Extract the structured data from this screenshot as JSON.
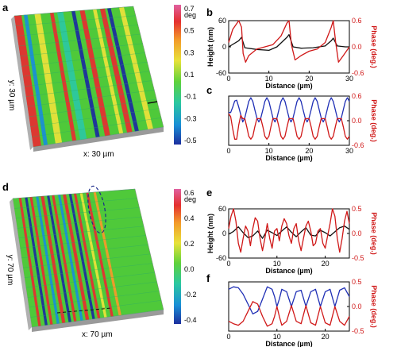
{
  "colors": {
    "height_line": "#111111",
    "phase_line": "#d01818",
    "blue_line": "#1f2fb5",
    "cmap": [
      "#1c2f9e",
      "#1a8fd6",
      "#2cc8a0",
      "#5fd23c",
      "#e8e23a",
      "#f39a2a",
      "#e43030",
      "#e060a0"
    ]
  },
  "panels": {
    "a": {
      "letter": "a",
      "x_label": "x: 30 µm",
      "y_label": "y: 30 µm"
    },
    "d": {
      "letter": "d",
      "x_label": "x: 70 µm",
      "y_label": "y: 70 µm"
    }
  },
  "colorbars": [
    {
      "id": "cb_a",
      "unit": "deg",
      "ticks": [
        "0.7",
        "0.5",
        "0.3",
        "0.1",
        "-0.1",
        "-0.3",
        "-0.5"
      ],
      "range": [
        -0.5,
        0.7
      ]
    },
    {
      "id": "cb_d",
      "unit": "deg",
      "ticks": [
        "0.6",
        "0.4",
        "0.2",
        "0.0",
        "-0.2",
        "-0.4"
      ],
      "range": [
        -0.4,
        0.6
      ]
    }
  ],
  "chart_data": [
    {
      "panel": "b",
      "type": "line",
      "xlabel": "Distance (µm)",
      "ylabel": "Height (nm)",
      "y2label": "Phase (deg.)",
      "xlim": [
        0,
        30
      ],
      "ylim": [
        -60,
        60
      ],
      "y2lim": [
        -0.6,
        0.6
      ],
      "xticks": [
        "0",
        "10",
        "20",
        "30"
      ],
      "yticks": [
        "60",
        "0",
        "-60"
      ],
      "y2ticks": [
        "0.6",
        "0.0",
        "-0.6"
      ],
      "series": [
        {
          "axis": "left",
          "color": "#111111",
          "x": [
            0,
            2.5,
            3.2,
            4,
            7,
            10,
            12,
            14.5,
            15,
            16,
            18,
            21,
            24,
            25.5,
            26,
            27,
            29,
            30
          ],
          "y": [
            0,
            14,
            22,
            -2,
            -6,
            -8,
            0,
            22,
            28,
            0,
            -3,
            -2,
            2,
            14,
            20,
            2,
            0,
            0
          ]
        },
        {
          "axis": "right",
          "color": "#d01818",
          "x": [
            0,
            1,
            2.5,
            3.2,
            3.6,
            4.2,
            5,
            7,
            9,
            11,
            13,
            14.5,
            15,
            15.6,
            16.5,
            18,
            20,
            22,
            24,
            25.5,
            26,
            26.6,
            27.3,
            28.5,
            30
          ],
          "y": [
            0.1,
            0.4,
            0.6,
            0.45,
            -0.15,
            -0.35,
            -0.2,
            -0.05,
            0.0,
            0.05,
            0.25,
            0.55,
            0.6,
            0.05,
            -0.3,
            -0.2,
            -0.1,
            -0.05,
            0.1,
            0.45,
            0.6,
            0.1,
            -0.35,
            -0.2,
            0.0
          ]
        }
      ]
    },
    {
      "panel": "c",
      "type": "line",
      "xlabel": "Distance (µm)",
      "ylabel": "",
      "y2label": "Phase (deg.)",
      "xlim": [
        0,
        30
      ],
      "ylim": [
        -0.6,
        0.6
      ],
      "y2lim": [
        -0.6,
        0.6
      ],
      "xticks": [
        "0",
        "10",
        "20",
        "30"
      ],
      "yticks": [],
      "y2ticks": [
        "0.6",
        "0.0",
        "-0.6"
      ],
      "series": [
        {
          "axis": "right",
          "color": "#1f2fb5",
          "x": [
            0,
            0.5,
            1,
            1.5,
            2,
            2.5,
            3,
            3.5,
            4,
            4.5,
            5,
            5.5,
            6,
            6.5,
            7,
            7.5,
            8,
            8.5,
            9,
            9.5,
            10,
            10.5,
            11,
            11.5,
            12,
            12.5,
            13,
            13.5,
            14,
            14.5,
            15,
            15.5,
            16,
            16.5,
            17,
            17.5,
            18,
            18.5,
            19,
            19.5,
            20,
            20.5,
            21,
            21.5,
            22,
            22.5,
            23,
            23.5,
            24,
            24.5,
            25,
            25.5,
            26,
            26.5,
            27,
            27.5,
            28,
            28.5,
            29,
            29.5,
            30
          ],
          "y": [
            0.2,
            0.2,
            0.33,
            0.48,
            0.5,
            0.33,
            0.15,
            -0.03,
            0.07,
            0.27,
            0.47,
            0.56,
            0.47,
            0.27,
            0.07,
            -0.03,
            0.07,
            0.27,
            0.47,
            0.56,
            0.47,
            0.27,
            0.07,
            -0.03,
            0.07,
            0.27,
            0.47,
            0.56,
            0.47,
            0.27,
            0.07,
            -0.03,
            0.07,
            0.27,
            0.47,
            0.56,
            0.47,
            0.27,
            0.07,
            -0.03,
            0.07,
            0.27,
            0.47,
            0.56,
            0.47,
            0.27,
            0.07,
            -0.03,
            0.07,
            0.27,
            0.47,
            0.56,
            0.47,
            0.27,
            0.07,
            -0.03,
            0.07,
            0.27,
            0.47,
            0.56,
            0.47
          ]
        },
        {
          "axis": "right",
          "color": "#d01818",
          "x": [
            0,
            0.5,
            1,
            1.5,
            2,
            2.5,
            3,
            3.5,
            4,
            4.5,
            5,
            5.5,
            6,
            6.5,
            7,
            7.5,
            8,
            8.5,
            9,
            9.5,
            10,
            10.5,
            11,
            11.5,
            12,
            12.5,
            13,
            13.5,
            14,
            14.5,
            15,
            15.5,
            16,
            16.5,
            17,
            17.5,
            18,
            18.5,
            19,
            19.5,
            20,
            20.5,
            21,
            21.5,
            22,
            22.5,
            23,
            23.5,
            24,
            24.5,
            25,
            25.5,
            26,
            26.5,
            27,
            27.5,
            28,
            28.5,
            29,
            29.5,
            30
          ],
          "y": [
            0.17,
            0.1,
            -0.2,
            -0.45,
            -0.45,
            -0.1,
            0.13,
            0.05,
            0.05,
            -0.15,
            -0.38,
            -0.45,
            -0.38,
            -0.15,
            0.05,
            0.05,
            0.05,
            -0.15,
            -0.38,
            -0.45,
            -0.38,
            -0.15,
            0.05,
            0.05,
            0.05,
            -0.15,
            -0.38,
            -0.45,
            -0.38,
            -0.15,
            0.05,
            0.05,
            0.05,
            -0.15,
            -0.38,
            -0.45,
            -0.38,
            -0.15,
            0.05,
            0.05,
            0.05,
            -0.15,
            -0.38,
            -0.45,
            -0.38,
            -0.15,
            0.05,
            0.05,
            0.05,
            -0.15,
            -0.38,
            -0.45,
            -0.38,
            -0.15,
            0.05,
            0.05,
            0.05,
            -0.15,
            -0.38,
            -0.45,
            -0.38
          ]
        }
      ]
    },
    {
      "panel": "e",
      "type": "line",
      "xlabel": "Distance (µm)",
      "ylabel": "Height (nm)",
      "y2label": "Phase (deg.)",
      "xlim": [
        0,
        25
      ],
      "ylim": [
        -60,
        60
      ],
      "y2lim": [
        -0.5,
        0.5
      ],
      "xticks": [
        "0",
        "10",
        "20"
      ],
      "yticks": [
        "60",
        "0",
        "-60"
      ],
      "y2ticks": [
        "0.5",
        "0.0",
        "-0.5"
      ],
      "series": [
        {
          "axis": "left",
          "color": "#111111",
          "x": [
            0,
            1,
            2,
            3,
            4,
            5,
            6,
            7,
            8,
            9,
            10,
            11,
            12,
            13,
            14,
            15,
            16,
            17,
            18,
            19,
            20,
            21,
            22,
            23,
            24,
            25
          ],
          "y": [
            -2,
            5,
            16,
            2,
            -10,
            -6,
            6,
            -12,
            8,
            2,
            -5,
            6,
            16,
            3,
            -8,
            4,
            14,
            -4,
            -6,
            8,
            2,
            -6,
            4,
            14,
            18,
            10
          ]
        },
        {
          "axis": "right",
          "color": "#d01818",
          "x": [
            0,
            0.5,
            1,
            1.5,
            2,
            2.5,
            3,
            3.5,
            4,
            4.5,
            5,
            5.5,
            6,
            6.5,
            7,
            7.5,
            8,
            8.5,
            9,
            9.5,
            10,
            10.5,
            11,
            11.5,
            12,
            12.5,
            13,
            13.5,
            14,
            14.5,
            15,
            15.5,
            16,
            16.5,
            17,
            17.5,
            18,
            18.5,
            19,
            19.5,
            20,
            20.5,
            21,
            21.5,
            22,
            22.5,
            23,
            23.5,
            24,
            24.5,
            25
          ],
          "y": [
            0.1,
            0.35,
            0.5,
            0.25,
            -0.2,
            -0.38,
            -0.1,
            0.15,
            0.05,
            -0.25,
            0.1,
            0.32,
            0.25,
            -0.1,
            -0.35,
            -0.1,
            0.2,
            -0.1,
            -0.3,
            0.05,
            0.1,
            -0.15,
            0.15,
            0.3,
            0.2,
            -0.05,
            -0.2,
            0.1,
            0.2,
            -0.15,
            -0.35,
            -0.1,
            0.15,
            0.25,
            0.05,
            -0.25,
            -0.2,
            0.05,
            0.1,
            -0.2,
            -0.3,
            -0.05,
            0.2,
            0.5,
            0.35,
            -0.1,
            -0.38,
            -0.1,
            0.25,
            0.45,
            0.2
          ]
        }
      ]
    },
    {
      "panel": "f",
      "type": "line",
      "xlabel": "Distance (µm)",
      "ylabel": "",
      "y2label": "Phase (deg.)",
      "xlim": [
        0,
        25
      ],
      "ylim": [
        -0.5,
        0.5
      ],
      "y2lim": [
        -0.5,
        0.5
      ],
      "xticks": [
        "0",
        "10",
        "20"
      ],
      "yticks": [],
      "y2ticks": [
        "0.5",
        "0.0",
        "-0.5"
      ],
      "series": [
        {
          "axis": "right",
          "color": "#1f2fb5",
          "x": [
            0,
            1,
            2,
            3,
            4,
            5,
            6,
            7,
            8,
            9,
            9.5,
            10,
            10.5,
            11,
            12,
            13,
            14,
            15,
            16,
            17,
            18,
            19,
            20,
            21,
            22,
            23,
            24,
            25
          ],
          "y": [
            0.35,
            0.4,
            0.38,
            0.25,
            0.05,
            -0.15,
            -0.1,
            0.15,
            0.4,
            0.35,
            0.2,
            0.0,
            0.15,
            0.35,
            0.3,
            0.0,
            0.3,
            0.33,
            0.0,
            0.3,
            0.35,
            0.0,
            0.3,
            0.35,
            0.0,
            0.33,
            0.38,
            0.2
          ]
        },
        {
          "axis": "right",
          "color": "#d01818",
          "x": [
            0,
            1,
            2,
            3,
            4,
            5,
            6,
            7,
            8,
            9,
            9.5,
            10,
            10.5,
            11,
            12,
            13,
            14,
            15,
            16,
            17,
            18,
            19,
            20,
            21,
            22,
            23,
            24,
            25
          ],
          "y": [
            -0.3,
            -0.35,
            -0.38,
            -0.3,
            -0.1,
            0.1,
            0.05,
            -0.2,
            -0.4,
            -0.35,
            -0.2,
            0.0,
            -0.2,
            -0.38,
            -0.3,
            0.02,
            -0.3,
            -0.35,
            0.02,
            -0.33,
            -0.38,
            0.0,
            -0.33,
            -0.38,
            0.0,
            -0.3,
            -0.38,
            -0.2
          ]
        }
      ]
    }
  ]
}
